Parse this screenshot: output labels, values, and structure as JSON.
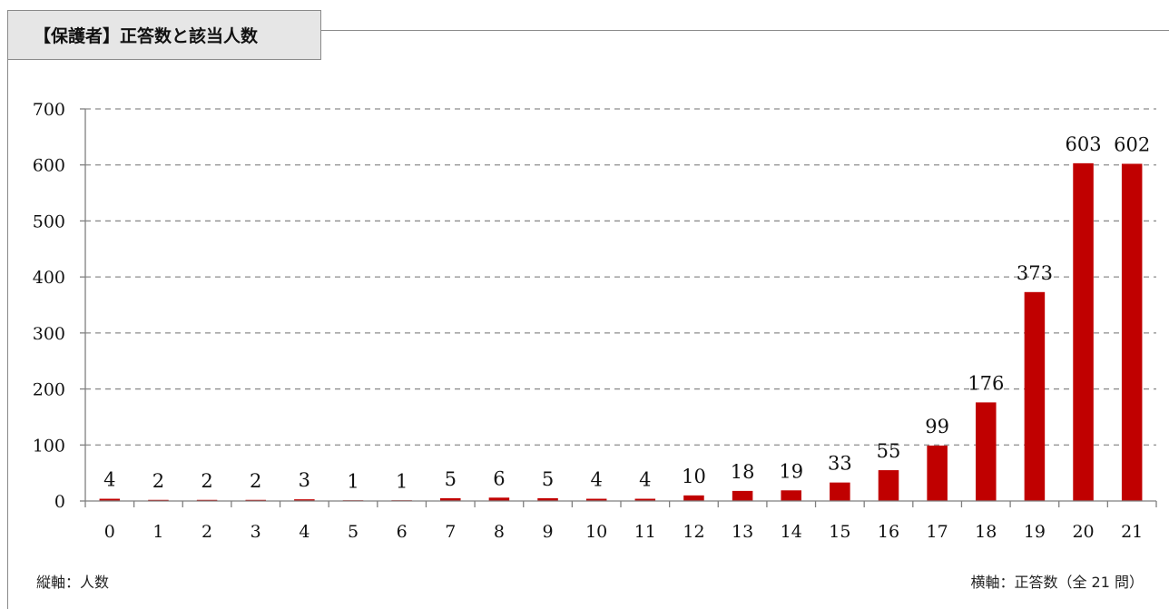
{
  "title": "【保護者】正答数と該当人数",
  "y_axis_note": "縦軸：人数",
  "x_axis_note": "横軸：正答数（全 21 問）",
  "colors": {
    "bar": "#c00000",
    "grid": "#8c8c8c",
    "axis": "#7f7f7f",
    "frame": "#8a8a8a",
    "tab_bg": "#e6e6e6"
  },
  "chart_data": {
    "type": "bar",
    "categories": [
      "0",
      "1",
      "2",
      "3",
      "4",
      "5",
      "6",
      "7",
      "8",
      "9",
      "10",
      "11",
      "12",
      "13",
      "14",
      "15",
      "16",
      "17",
      "18",
      "19",
      "20",
      "21"
    ],
    "values": [
      4,
      2,
      2,
      2,
      3,
      1,
      1,
      5,
      6,
      5,
      4,
      4,
      10,
      18,
      19,
      33,
      55,
      99,
      176,
      373,
      603,
      602
    ],
    "data_labels": [
      "4",
      "2",
      "2",
      "2",
      "3",
      "1",
      "1",
      "5",
      "6",
      "5",
      "4",
      "4",
      "10",
      "18",
      "19",
      "33",
      "55",
      "99",
      "176",
      "373",
      "603",
      "602"
    ],
    "ylim": [
      0,
      700
    ],
    "yticks": [
      0,
      100,
      200,
      300,
      400,
      500,
      600,
      700
    ],
    "grid": true,
    "grid_style": "dashed",
    "legend": "none"
  }
}
